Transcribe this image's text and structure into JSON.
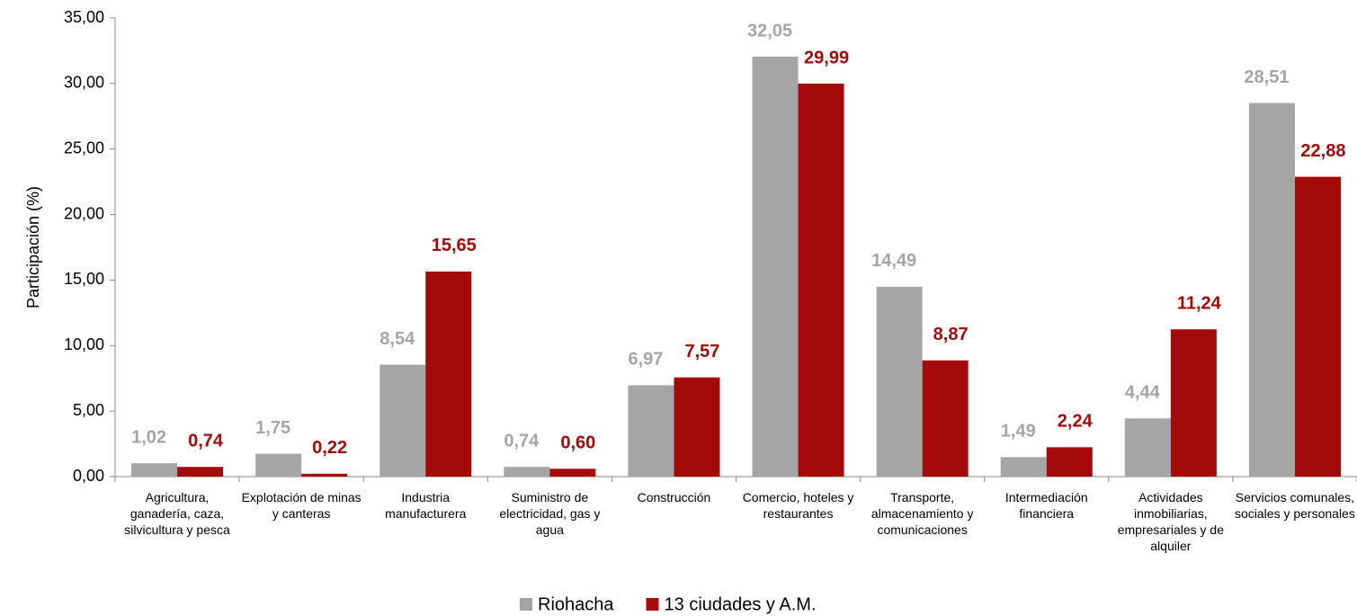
{
  "chart_data": {
    "type": "bar",
    "y_axis_label": "Participación (%)",
    "categories": [
      "Agricultura, ganadería, caza, silvicultura y pesca",
      "Explotación de minas y canteras",
      "Industria manufacturera",
      "Suministro de electricidad, gas y agua",
      "Construcción",
      "Comercio, hoteles y restaurantes",
      "Transporte, almacenamiento y comunicaciones",
      "Intermediación financiera",
      "Actividades inmobiliarias, empresariales y de alquiler",
      "Servicios comunales, sociales y personales"
    ],
    "series": [
      {
        "name": "Riohacha",
        "color": "#a5a5a5",
        "values": [
          1.02,
          1.75,
          8.54,
          0.74,
          6.97,
          32.05,
          14.49,
          1.49,
          4.44,
          28.51
        ],
        "value_labels": [
          "1,02",
          "1,75",
          "8,54",
          "0,74",
          "6,97",
          "32,05",
          "14,49",
          "1,49",
          "4,44",
          "28,51"
        ]
      },
      {
        "name": "13 ciudades y A.M.",
        "color": "#a50a0a",
        "values": [
          0.74,
          0.22,
          15.65,
          0.6,
          7.57,
          29.99,
          8.87,
          2.24,
          11.24,
          22.88
        ],
        "value_labels": [
          "0,74",
          "0,22",
          "15,65",
          "0,60",
          "7,57",
          "29,99",
          "8,87",
          "2,24",
          "11,24",
          "22,88"
        ]
      }
    ],
    "ylim": [
      0,
      35
    ],
    "yticks": [
      {
        "value": 0,
        "label": "0,00"
      },
      {
        "value": 5,
        "label": "5,00"
      },
      {
        "value": 10,
        "label": "10,00"
      },
      {
        "value": 15,
        "label": "15,00"
      },
      {
        "value": 20,
        "label": "20,00"
      },
      {
        "value": 25,
        "label": "25,00"
      },
      {
        "value": 30,
        "label": "30,00"
      },
      {
        "value": 35,
        "label": "35,00"
      }
    ],
    "grid": false,
    "legend": "bottom"
  }
}
